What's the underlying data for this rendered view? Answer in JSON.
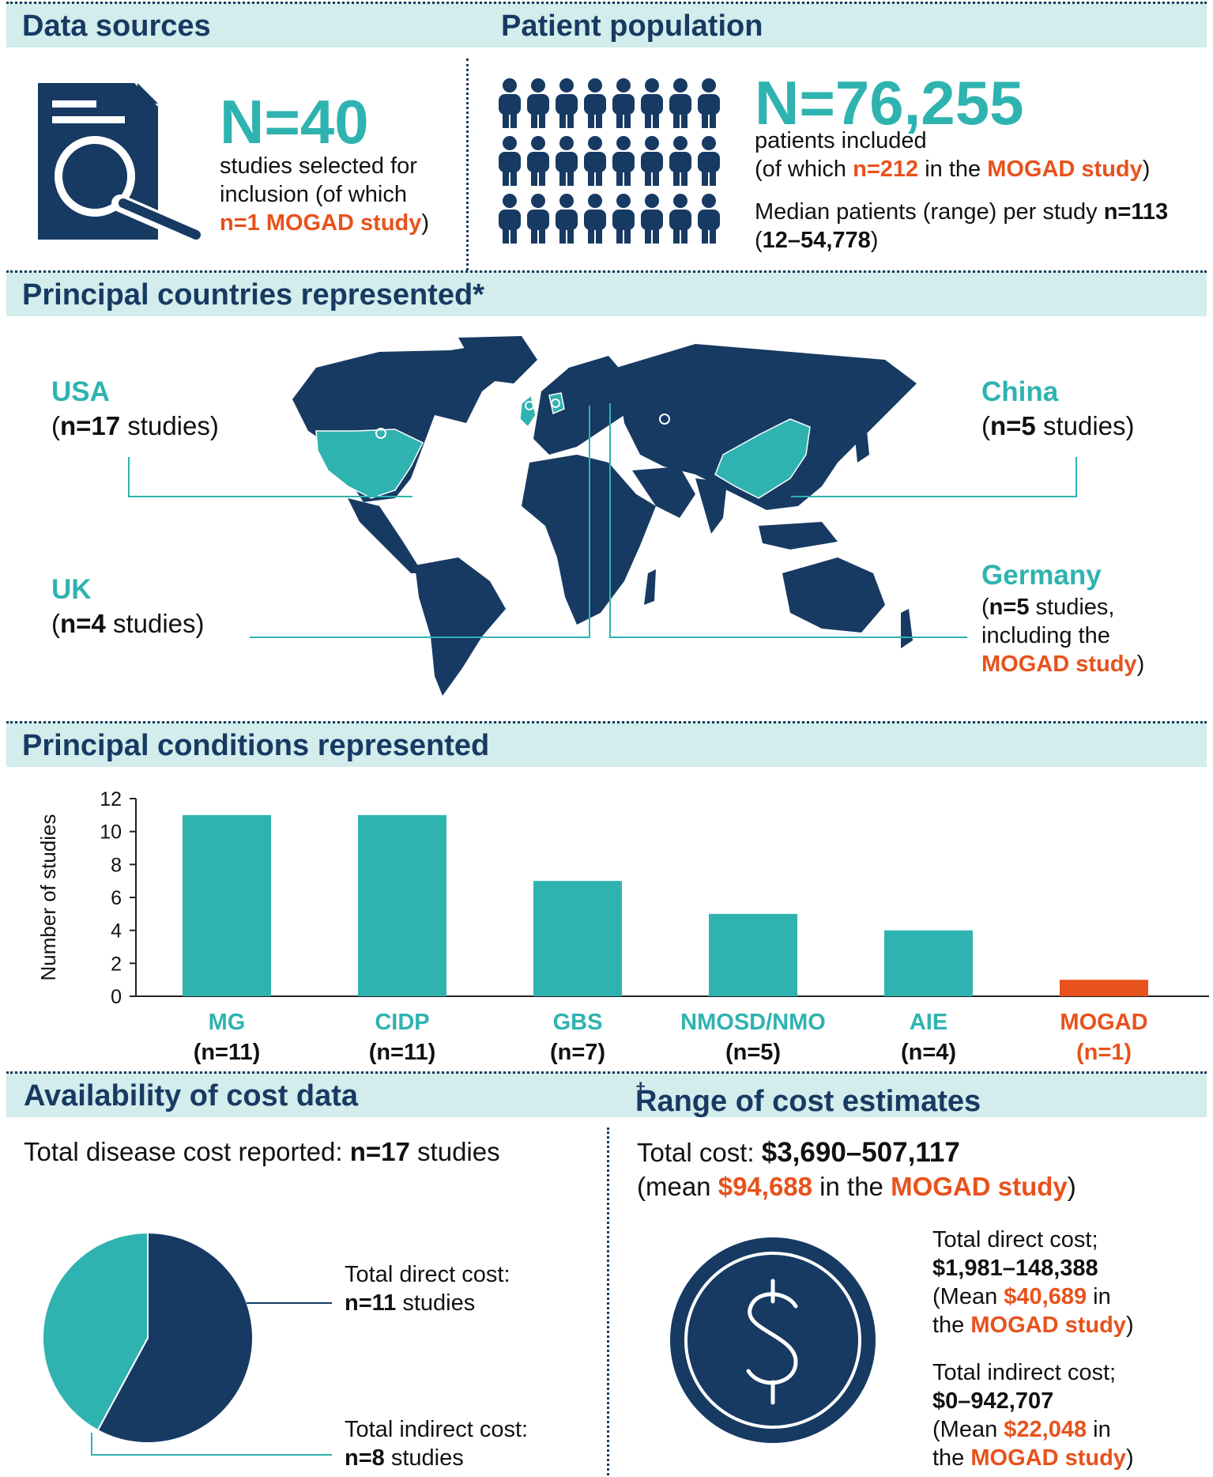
{
  "colors": {
    "navy": "#173a63",
    "teal": "#2fb3b0",
    "orange": "#e8521c",
    "header_bg": "#d3ecec"
  },
  "data_sources": {
    "header": "Data sources",
    "count": "N=40",
    "line1": "studies selected for",
    "line2": "inclusion (of which",
    "mogad": "n=1 MOGAD study",
    "close": ")",
    "icon": "document-search-icon"
  },
  "patient_population": {
    "header": "Patient population",
    "count": "N=76,255",
    "line1": "patients included",
    "line2_pre": "(of which ",
    "line2_n": "n=212",
    "line2_mid": " in the ",
    "line2_mogad": "MOGAD study",
    "line2_post": ")",
    "median_pre": "Median patients (range) per study ",
    "median_n": "n=113",
    "range_open": "(",
    "range": "12–54,778",
    "range_close": ")",
    "icon": "people-icon"
  },
  "countries": {
    "header": "Principal countries represented*",
    "usa": {
      "name": "USA",
      "open": "(",
      "n": "n=17",
      "rest": " studies)"
    },
    "uk": {
      "name": "UK",
      "open": "(",
      "n": "n=4",
      "rest": " studies)"
    },
    "china": {
      "name": "China",
      "open": "(",
      "n": "n=5",
      "rest": " studies)"
    },
    "germany": {
      "name": "Germany",
      "open": "(",
      "n": "n=5",
      "rest": " studies,",
      "line2": "including the",
      "mogad": "MOGAD study",
      "close": ")"
    },
    "map_icon": "world-map-icon"
  },
  "conditions": {
    "header": "Principal conditions represented",
    "labels": [
      {
        "name": "MG",
        "n": "(n=11)"
      },
      {
        "name": "CIDP",
        "n": "(n=11)"
      },
      {
        "name": "GBS",
        "n": "(n=7)"
      },
      {
        "name": "NMOSD/NMO",
        "n": "(n=5)"
      },
      {
        "name": "AIE",
        "n": "(n=4)"
      },
      {
        "name": "MOGAD",
        "n": "(n=1)"
      }
    ]
  },
  "chart_data": [
    {
      "type": "bar",
      "categories": [
        "MG",
        "CIDP",
        "GBS",
        "NMOSD/NMO",
        "AIE",
        "MOGAD"
      ],
      "values": [
        11,
        11,
        7,
        5,
        4,
        1
      ],
      "bar_colors": [
        "#2fb3b0",
        "#2fb3b0",
        "#2fb3b0",
        "#2fb3b0",
        "#2fb3b0",
        "#e8521c"
      ],
      "ylabel": "Number of studies",
      "ylim": [
        0,
        12
      ],
      "yticks": [
        0,
        2,
        4,
        6,
        8,
        10,
        12
      ],
      "grid": false
    },
    {
      "type": "pie",
      "labels": [
        "Total direct cost",
        "Total indirect cost"
      ],
      "values": [
        11,
        8
      ],
      "colors": [
        "#173a63",
        "#2fb3b0"
      ]
    }
  ],
  "cost_availability": {
    "header": "Availability of cost data",
    "total_pre": "Total disease cost reported: ",
    "total_n": "n=17",
    "total_post": " studies",
    "direct_label": "Total direct cost:",
    "direct_n": "n=11",
    "direct_post": " studies",
    "indirect_label": "Total indirect cost:",
    "indirect_n": "n=8",
    "indirect_post": " studies"
  },
  "cost_range": {
    "header": "Range of cost estimates",
    "dagger": "†",
    "total_pre": "Total cost: ",
    "total_val": "$3,690–507,117",
    "mean_pre": "(mean ",
    "mean_val": "$94,688",
    "mean_mid": " in the ",
    "mean_mogad": "MOGAD study",
    "mean_close": ")",
    "direct_title": "Total direct cost;",
    "direct_range": "$1,981–148,388",
    "direct_mean_pre": "(Mean ",
    "direct_mean_val": "$40,689",
    "direct_mean_post": " in",
    "direct_the": "the ",
    "direct_mogad": "MOGAD study",
    "direct_close": ")",
    "indirect_title": "Total indirect cost;",
    "indirect_range": "$0–942,707",
    "indirect_mean_pre": "(Mean ",
    "indirect_mean_val": "$22,048",
    "indirect_mean_post": " in",
    "indirect_the": "the ",
    "indirect_mogad": "MOGAD study",
    "indirect_close": ")",
    "icon": "dollar-icon"
  }
}
